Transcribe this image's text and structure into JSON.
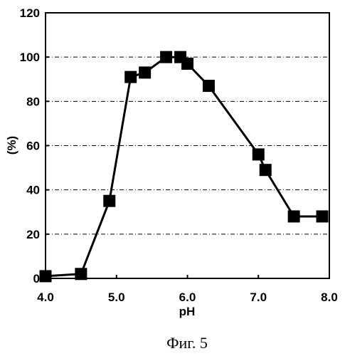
{
  "chart_data": {
    "type": "line",
    "xlabel": "pH",
    "ylabel": "(%)",
    "xlim": [
      4.0,
      8.0
    ],
    "ylim": [
      0,
      120
    ],
    "x_ticks": [
      "4.0",
      "5.0",
      "6.0",
      "7.0",
      "8.0"
    ],
    "y_ticks": [
      "0",
      "20",
      "40",
      "60",
      "80",
      "100",
      "120"
    ],
    "grid": "horizontal-dashed",
    "marker": "square",
    "series": [
      {
        "x": [
          4.0,
          4.5,
          4.9,
          5.2,
          5.4,
          5.7,
          5.9,
          6.0,
          6.3,
          7.0,
          7.1,
          7.5,
          7.9
        ],
        "y": [
          1,
          2,
          35,
          91,
          93,
          100,
          100,
          97,
          87,
          56,
          49,
          28,
          28
        ]
      }
    ]
  },
  "caption": "Фиг. 5",
  "colors": {
    "line": "#000000",
    "grid": "#000000"
  }
}
